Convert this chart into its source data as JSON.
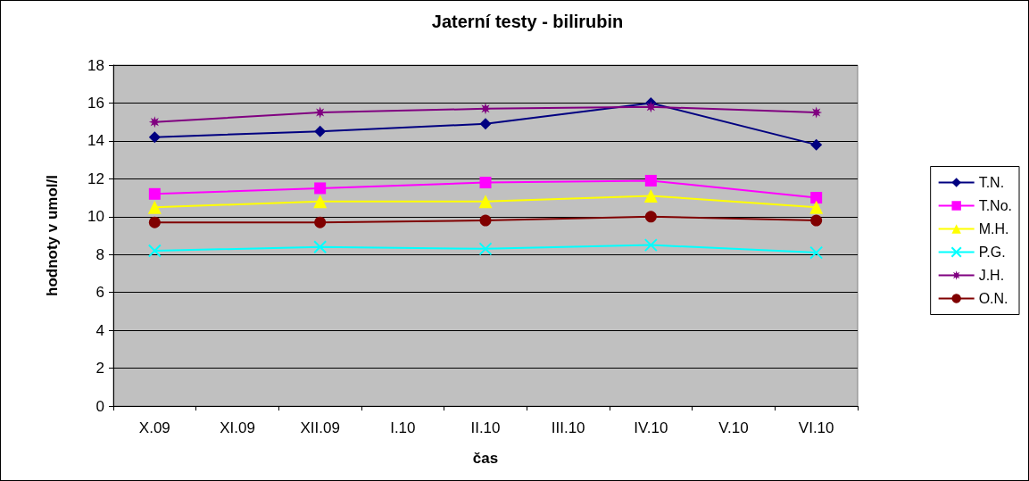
{
  "chart_data": {
    "type": "line",
    "title": "Jaterní testy - bilirubin",
    "xlabel": "čas",
    "ylabel": "hodnoty v umol/l",
    "categories": [
      "X.09",
      "XI.09",
      "XII.09",
      "I.10",
      "II.10",
      "III.10",
      "IV.10",
      "V.10",
      "VI.10"
    ],
    "ylim": [
      0,
      18
    ],
    "yticks": [
      0,
      2,
      4,
      6,
      8,
      10,
      12,
      14,
      16,
      18
    ],
    "grid": "y",
    "legend": "right",
    "series": [
      {
        "name": "T.N.",
        "color": "#000080",
        "marker": "diamond",
        "values": [
          14.2,
          null,
          14.5,
          null,
          14.9,
          null,
          16.0,
          null,
          13.8
        ]
      },
      {
        "name": "T.No.",
        "color": "#ff00ff",
        "marker": "square",
        "values": [
          11.2,
          null,
          11.5,
          null,
          11.8,
          null,
          11.9,
          null,
          11.0
        ]
      },
      {
        "name": "M.H.",
        "color": "#ffff00",
        "marker": "triangle",
        "values": [
          10.5,
          null,
          10.8,
          null,
          10.8,
          null,
          11.1,
          null,
          10.5
        ]
      },
      {
        "name": "P.G.",
        "color": "#00ffff",
        "marker": "cross",
        "values": [
          8.2,
          null,
          8.4,
          null,
          8.3,
          null,
          8.5,
          null,
          8.1
        ]
      },
      {
        "name": "J.H.",
        "color": "#800080",
        "marker": "star",
        "values": [
          15.0,
          null,
          15.5,
          null,
          15.7,
          null,
          15.8,
          null,
          15.5
        ]
      },
      {
        "name": "O.N.",
        "color": "#800000",
        "marker": "circle",
        "values": [
          9.7,
          null,
          9.7,
          null,
          9.8,
          null,
          10.0,
          null,
          9.8
        ]
      }
    ]
  }
}
